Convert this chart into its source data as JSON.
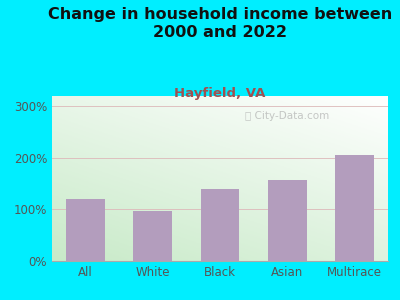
{
  "title": "Change in household income between\n2000 and 2022",
  "subtitle": "Hayfield, VA",
  "categories": [
    "All",
    "White",
    "Black",
    "Asian",
    "Multirace"
  ],
  "values": [
    120,
    97,
    140,
    158,
    205
  ],
  "bar_color": "#b39dbd",
  "title_fontsize": 11.5,
  "subtitle_fontsize": 9.5,
  "subtitle_color": "#a05050",
  "title_color": "#111111",
  "background_outer": "#00eeff",
  "yticks": [
    0,
    100,
    200,
    300
  ],
  "ylim": [
    0,
    320
  ],
  "grid_color": "#ddbbbb",
  "tick_label_color": "#555555",
  "watermark": " City-Data.com"
}
